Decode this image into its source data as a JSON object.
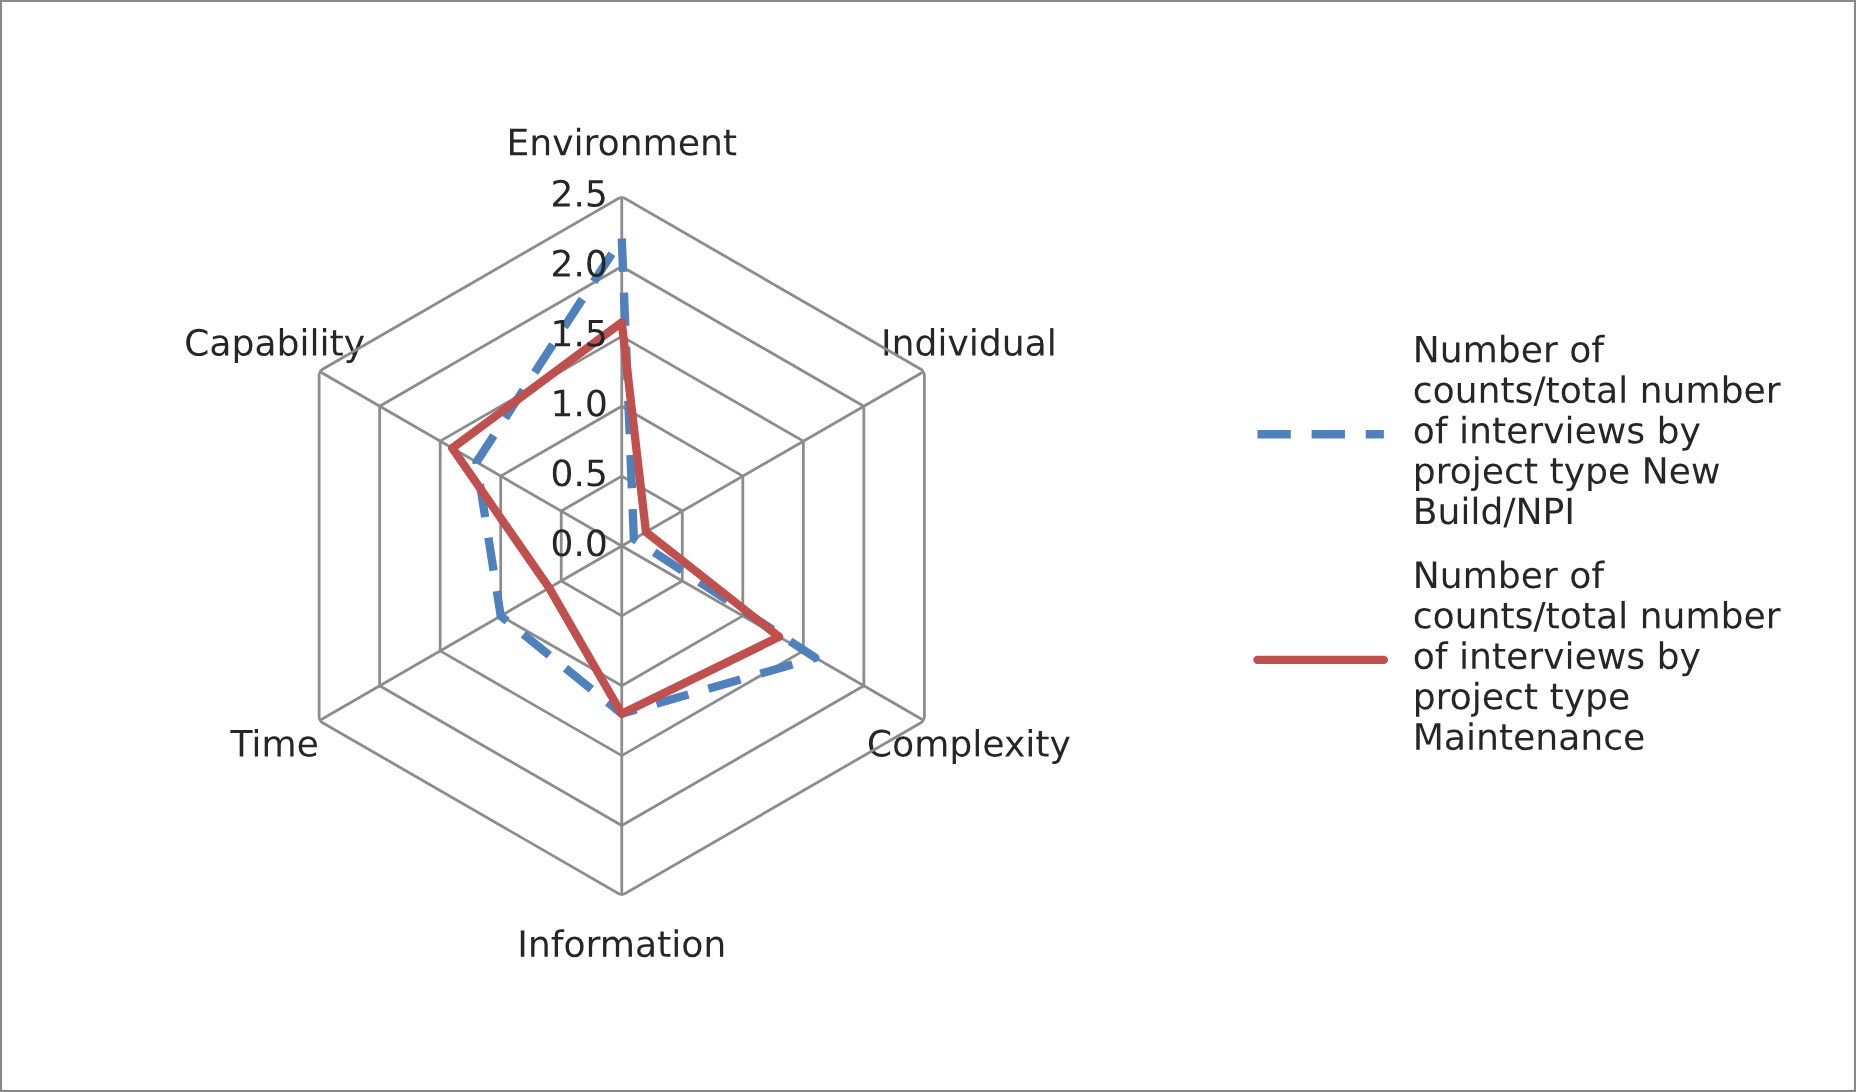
{
  "chart_data": {
    "type": "radar",
    "categories": [
      "Environment",
      "Individual",
      "Complexity",
      "Information",
      "Time",
      "Capability"
    ],
    "ylim": [
      0,
      2.5
    ],
    "yticks": [
      {
        "value": 0,
        "label": "0.0"
      },
      {
        "value": 0.5,
        "label": "0.5"
      },
      {
        "value": 1,
        "label": "1.0"
      },
      {
        "value": 1.5,
        "label": "1.5"
      },
      {
        "value": 2,
        "label": "2.0"
      },
      {
        "value": 2.5,
        "label": "2.5"
      }
    ],
    "grid": true,
    "legend": "right",
    "series": [
      {
        "name": "Number of counts/total number of interviews by project type New Build/NPI",
        "color": "#4f81bd",
        "line_style": "dashed",
        "values": [
          2.2,
          0.1,
          1.6,
          1.2,
          1.0,
          1.2
        ]
      },
      {
        "name": "Number of counts/total number of interviews by project type Maintenance",
        "color": "#c0504d",
        "line_style": "solid",
        "values": [
          1.6,
          0.2,
          1.3,
          1.2,
          0.6,
          1.4
        ]
      }
    ]
  }
}
